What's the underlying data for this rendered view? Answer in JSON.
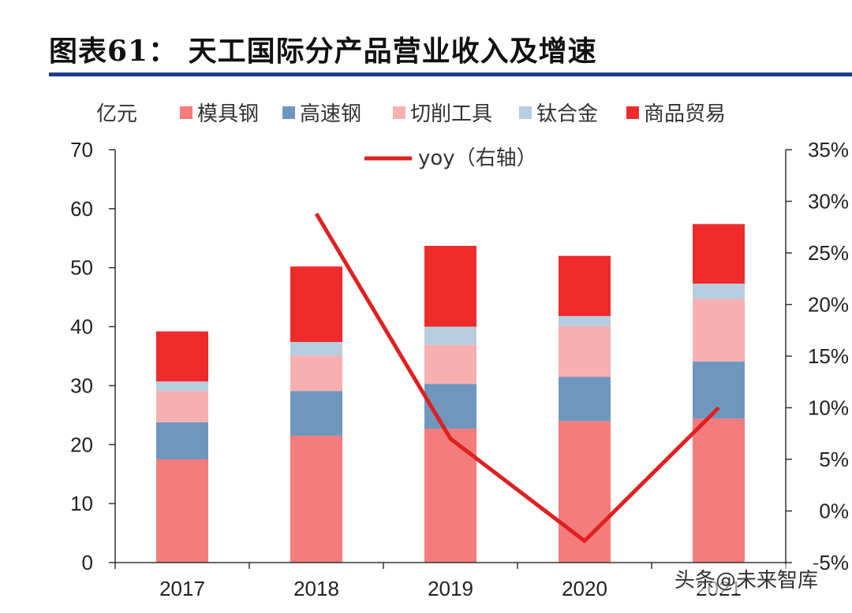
{
  "title": "图表61：   天工国际分产品营业收入及增速",
  "watermark": "头条@未来智库",
  "colors": {
    "mould_steel": "#f47c7c",
    "high_speed_steel": "#6f97bd",
    "cutting_tools": "#f7b0b0",
    "titanium_alloy": "#b7cde0",
    "trading": "#ee2b2b",
    "yoy": "#e02020",
    "title_rule": "#1f3c88"
  },
  "chart_data": {
    "type": "bar",
    "stacked": true,
    "title": "天工国际分产品营业收入及增速",
    "ylabel": "亿元",
    "ylim": [
      0,
      70
    ],
    "yticks": [
      0,
      10,
      20,
      30,
      40,
      50,
      60,
      70
    ],
    "y2lim": [
      -5,
      35
    ],
    "y2ticks": [
      "-5%",
      "0%",
      "5%",
      "10%",
      "15%",
      "20%",
      "25%",
      "30%",
      "35%"
    ],
    "categories": [
      "2017",
      "2018",
      "2019",
      "2020",
      "2021"
    ],
    "series": [
      {
        "name": "模具钢",
        "color_key": "mould_steel",
        "values": [
          17.5,
          21.5,
          22.7,
          24.0,
          24.4
        ]
      },
      {
        "name": "高速钢",
        "color_key": "high_speed_steel",
        "values": [
          6.3,
          7.6,
          7.6,
          7.5,
          9.7
        ]
      },
      {
        "name": "切削工具",
        "color_key": "cutting_tools",
        "values": [
          5.3,
          6.0,
          6.6,
          8.6,
          10.6
        ]
      },
      {
        "name": "钛合金",
        "color_key": "titanium_alloy",
        "values": [
          1.6,
          2.3,
          3.1,
          1.7,
          2.6
        ]
      },
      {
        "name": "商品贸易",
        "color_key": "trading",
        "values": [
          8.5,
          12.8,
          13.7,
          10.2,
          10.1
        ]
      }
    ],
    "line": {
      "name": "yoy（右轴）",
      "axis": "right",
      "unit": "%",
      "x": [
        "2018",
        "2019",
        "2020",
        "2021"
      ],
      "values": [
        28.8,
        7.0,
        -2.9,
        10.0
      ]
    }
  }
}
